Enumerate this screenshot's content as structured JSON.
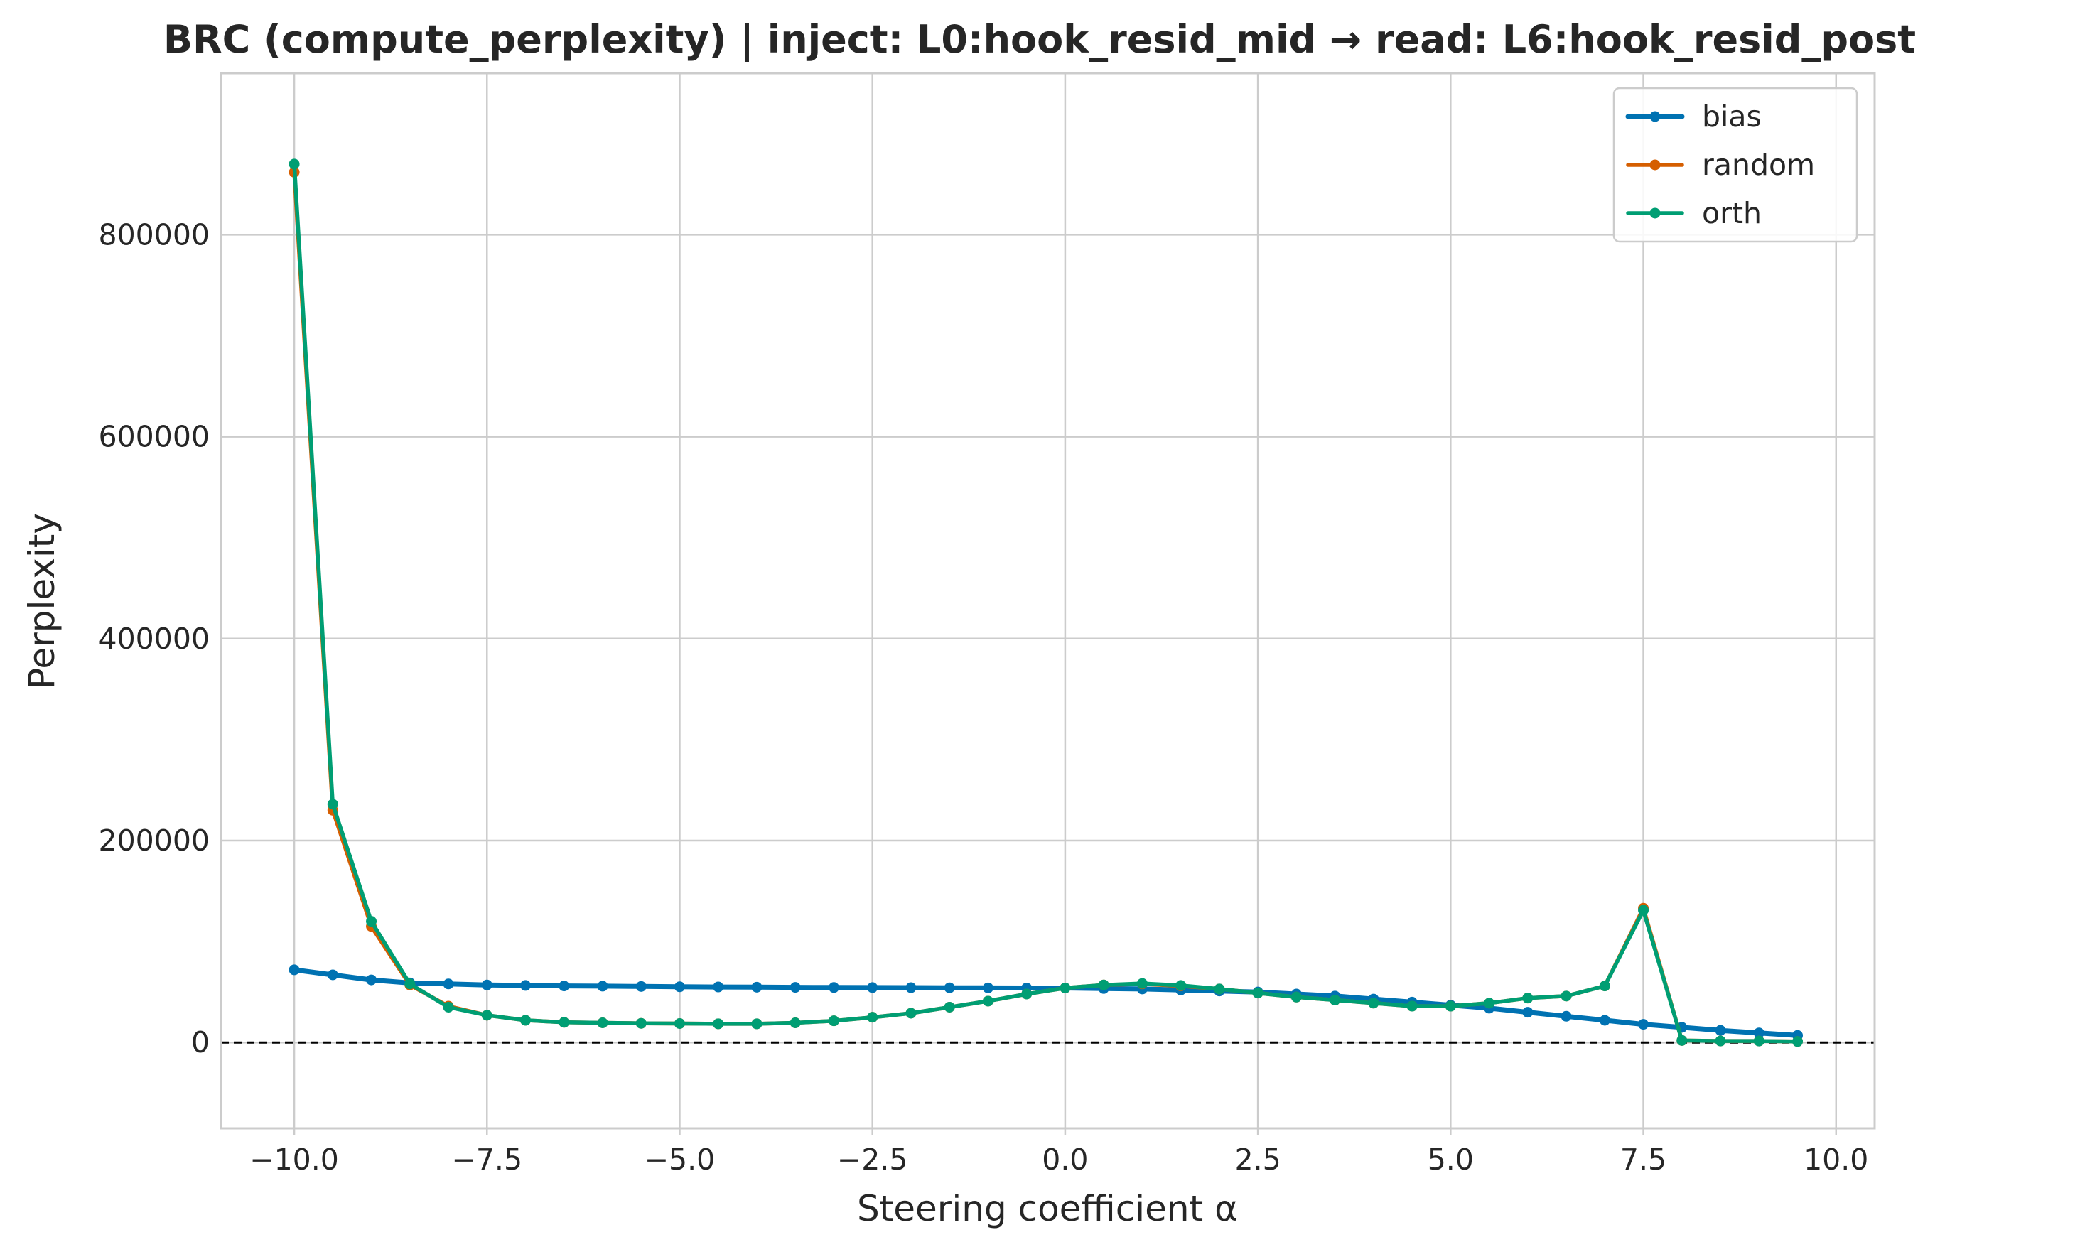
{
  "chart_data": {
    "type": "line",
    "title": "BRC (compute_perplexity) | inject: L0:hook_resid_mid → read: L6:hook_resid_post",
    "xlabel": "Steering coefficient α",
    "ylabel": "Perplexity",
    "xlim": [
      -10.95,
      10.5
    ],
    "ylim": [
      -85000,
      960000
    ],
    "xticks": [
      -10.0,
      -7.5,
      -5.0,
      -2.5,
      0.0,
      2.5,
      5.0,
      7.5,
      10.0
    ],
    "xtick_labels": [
      "−10.0",
      "−7.5",
      "−5.0",
      "−2.5",
      "0.0",
      "2.5",
      "5.0",
      "7.5",
      "10.0"
    ],
    "yticks": [
      0,
      200000,
      400000,
      600000,
      800000
    ],
    "ytick_labels": [
      "0",
      "200000",
      "400000",
      "600000",
      "800000"
    ],
    "grid": true,
    "legend_position": "top-right",
    "reference_line": {
      "y": 0,
      "style": "dashed",
      "color": "#000000"
    },
    "x": [
      -10.0,
      -9.5,
      -9.0,
      -8.5,
      -8.0,
      -7.5,
      -7.0,
      -6.5,
      -6.0,
      -5.5,
      -5.0,
      -4.5,
      -4.0,
      -3.5,
      -3.0,
      -2.5,
      -2.0,
      -1.5,
      -1.0,
      -0.5,
      0.0,
      0.5,
      1.0,
      1.5,
      2.0,
      2.5,
      3.0,
      3.5,
      4.0,
      4.5,
      5.0,
      5.5,
      6.0,
      6.5,
      7.0,
      7.5,
      8.0,
      8.5,
      9.0,
      9.5
    ],
    "series": [
      {
        "name": "bias",
        "color": "#0072b2",
        "values": [
          72000,
          67000,
          62000,
          59000,
          58000,
          57000,
          56500,
          56000,
          55800,
          55500,
          55200,
          55000,
          54800,
          54600,
          54500,
          54400,
          54300,
          54200,
          54100,
          54000,
          54000,
          53500,
          53000,
          52000,
          51000,
          50000,
          48000,
          46000,
          43000,
          40000,
          37000,
          34000,
          30000,
          26000,
          22000,
          18000,
          15000,
          12000,
          9500,
          7000
        ]
      },
      {
        "name": "random",
        "color": "#d55e00",
        "values": [
          862000,
          230000,
          115000,
          57000,
          36000,
          27000,
          22000,
          20000,
          19500,
          19000,
          18800,
          18500,
          18500,
          19500,
          21500,
          25000,
          29000,
          35000,
          41000,
          48000,
          54000,
          57000,
          58000,
          56000,
          53000,
          49000,
          45000,
          42000,
          39000,
          36000,
          36000,
          39000,
          44000,
          46000,
          56000,
          133000,
          2000,
          1500,
          1500,
          1000
        ]
      },
      {
        "name": "orth",
        "color": "#009e73",
        "values": [
          870000,
          236000,
          120000,
          58000,
          35000,
          27000,
          22000,
          20000,
          19500,
          19000,
          18800,
          18500,
          18500,
          19500,
          21500,
          25000,
          29000,
          35000,
          41000,
          48000,
          54000,
          57000,
          58500,
          56500,
          53000,
          49000,
          45000,
          42000,
          39000,
          36000,
          36000,
          39000,
          44000,
          46000,
          56000,
          131000,
          2000,
          1500,
          1500,
          1000
        ]
      }
    ]
  }
}
